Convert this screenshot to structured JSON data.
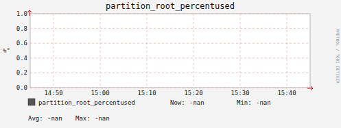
{
  "chart_data": {
    "type": "line",
    "title": "partition_root_percentused",
    "y_label": "%°",
    "categories": [
      "14:50",
      "15:00",
      "15:10",
      "15:20",
      "15:30",
      "15:40"
    ],
    "series": [
      {
        "name": "partition_root_percentused",
        "color": "#555555",
        "values": [
          null,
          null,
          null,
          null,
          null,
          null
        ]
      }
    ],
    "ylim": [
      0.0,
      1.0
    ],
    "yticks": [
      {
        "value": 0.0,
        "label": "0.0"
      },
      0.2,
      0.4,
      0.6,
      0.8,
      {
        "value": 1.0,
        "label": "1.0"
      }
    ],
    "grid": true,
    "legend": "bottom",
    "annotations": [
      "Now:",
      "-nan",
      "Min:",
      "-nan",
      "Avg:",
      "-nan",
      "Max:",
      "-nan",
      "RRDTOOL / TOBI OETIKER"
    ]
  }
}
